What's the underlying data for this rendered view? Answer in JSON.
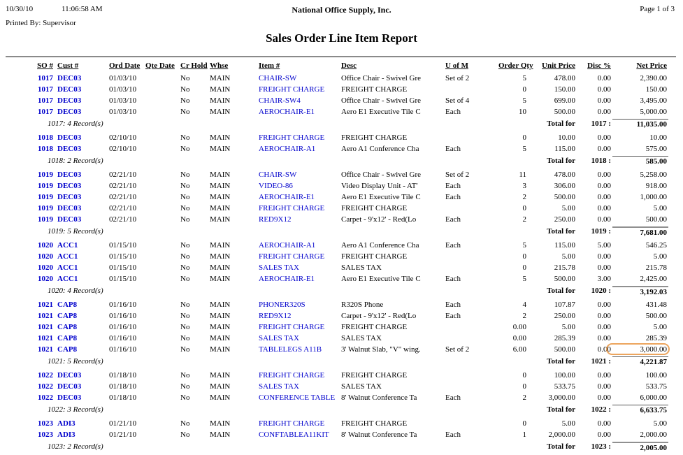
{
  "colors": {
    "link_blue": "#0000cc",
    "rule_gray": "#8a8a8a",
    "highlight_orange": "#eca55e"
  },
  "page_header": {
    "date": "10/30/10",
    "time": "11:06:58 AM",
    "printed_by": "Printed By: Supervisor",
    "company": "National Office Supply, Inc.",
    "report_title": "Sales Order Line Item Report",
    "page_info": "Page 1 of 3"
  },
  "table": {
    "columns": [
      "SO #",
      "Cust #",
      "Ord Date",
      "Qte Date",
      "Cr Hold",
      "Whse",
      "Item #",
      "Desc",
      "U of M",
      "Order Qty",
      "Unit Price",
      "Disc %",
      "Net Price"
    ],
    "groups": [
      {
        "summary_label": "1017: 4 Record(s)",
        "total_label": "Total for",
        "total_key": "1017 :",
        "total_value": "11,035.00",
        "total_rule": "thin",
        "rows": [
          {
            "so": "1017",
            "cust": "DEC03",
            "ord": "01/03/10",
            "qte": "",
            "cr": "No",
            "whse": "MAIN",
            "item": "CHAIR-SW",
            "desc": "Office Chair - Swivel Gre",
            "uofm": "Set of 2",
            "qty": "5",
            "unit": "478.00",
            "disc": "0.00",
            "net": "2,390.00"
          },
          {
            "so": "1017",
            "cust": "DEC03",
            "ord": "01/03/10",
            "qte": "",
            "cr": "No",
            "whse": "MAIN",
            "item": "FREIGHT CHARGE",
            "desc": "FREIGHT CHARGE",
            "uofm": "",
            "qty": "0",
            "unit": "150.00",
            "disc": "0.00",
            "net": "150.00"
          },
          {
            "so": "1017",
            "cust": "DEC03",
            "ord": "01/03/10",
            "qte": "",
            "cr": "No",
            "whse": "MAIN",
            "item": "CHAIR-SW4",
            "desc": "Office Chair - Swivel Gre",
            "uofm": "Set of 4",
            "qty": "5",
            "unit": "699.00",
            "disc": "0.00",
            "net": "3,495.00"
          },
          {
            "so": "1017",
            "cust": "DEC03",
            "ord": "01/03/10",
            "qte": "",
            "cr": "No",
            "whse": "MAIN",
            "item": "AEROCHAIR-E1",
            "desc": "Aero E1 Executive Tile C",
            "uofm": "Each",
            "qty": "10",
            "unit": "500.00",
            "disc": "0.00",
            "net": "5,000.00"
          }
        ]
      },
      {
        "summary_label": "1018: 2 Record(s)",
        "total_label": "Total for",
        "total_key": "1018 :",
        "total_value": "585.00",
        "total_rule": "thin",
        "rows": [
          {
            "so": "1018",
            "cust": "DEC03",
            "ord": "02/10/10",
            "qte": "",
            "cr": "No",
            "whse": "MAIN",
            "item": "FREIGHT CHARGE",
            "desc": "FREIGHT CHARGE",
            "uofm": "",
            "qty": "0",
            "unit": "10.00",
            "disc": "0.00",
            "net": "10.00"
          },
          {
            "so": "1018",
            "cust": "DEC03",
            "ord": "02/10/10",
            "qte": "",
            "cr": "No",
            "whse": "MAIN",
            "item": "AEROCHAIR-A1",
            "desc": "Aero A1 Conference Cha",
            "uofm": "Each",
            "qty": "5",
            "unit": "115.00",
            "disc": "0.00",
            "net": "575.00"
          }
        ]
      },
      {
        "summary_label": "1019: 5 Record(s)",
        "total_label": "Total for",
        "total_key": "1019 :",
        "total_value": "7,681.00",
        "total_rule": "thick",
        "rows": [
          {
            "so": "1019",
            "cust": "DEC03",
            "ord": "02/21/10",
            "qte": "",
            "cr": "No",
            "whse": "MAIN",
            "item": "CHAIR-SW",
            "desc": "Office Chair - Swivel Gre",
            "uofm": "Set of 2",
            "qty": "11",
            "unit": "478.00",
            "disc": "0.00",
            "net": "5,258.00"
          },
          {
            "so": "1019",
            "cust": "DEC03",
            "ord": "02/21/10",
            "qte": "",
            "cr": "No",
            "whse": "MAIN",
            "item": "VIDEO-86",
            "desc": "Video Display Unit - AT'",
            "uofm": "Each",
            "qty": "3",
            "unit": "306.00",
            "disc": "0.00",
            "net": "918.00"
          },
          {
            "so": "1019",
            "cust": "DEC03",
            "ord": "02/21/10",
            "qte": "",
            "cr": "No",
            "whse": "MAIN",
            "item": "AEROCHAIR-E1",
            "desc": "Aero E1 Executive Tile C",
            "uofm": "Each",
            "qty": "2",
            "unit": "500.00",
            "disc": "0.00",
            "net": "1,000.00"
          },
          {
            "so": "1019",
            "cust": "DEC03",
            "ord": "02/21/10",
            "qte": "",
            "cr": "No",
            "whse": "MAIN",
            "item": "FREIGHT CHARGE",
            "desc": "FREIGHT CHARGE",
            "uofm": "",
            "qty": "0",
            "unit": "5.00",
            "disc": "0.00",
            "net": "5.00"
          },
          {
            "so": "1019",
            "cust": "DEC03",
            "ord": "02/21/10",
            "qte": "",
            "cr": "No",
            "whse": "MAIN",
            "item": "RED9X12",
            "desc": "Carpet - 9'x12' - Red(Lo",
            "uofm": "Each",
            "qty": "2",
            "unit": "250.00",
            "disc": "0.00",
            "net": "500.00"
          }
        ]
      },
      {
        "summary_label": "1020: 4 Record(s)",
        "total_label": "Total for",
        "total_key": "1020 :",
        "total_value": "3,192.03",
        "total_rule": "thick",
        "rows": [
          {
            "so": "1020",
            "cust": "ACC1",
            "ord": "01/15/10",
            "qte": "",
            "cr": "No",
            "whse": "MAIN",
            "item": "AEROCHAIR-A1",
            "desc": "Aero A1 Conference Cha",
            "uofm": "Each",
            "qty": "5",
            "unit": "115.00",
            "disc": "5.00",
            "net": "546.25"
          },
          {
            "so": "1020",
            "cust": "ACC1",
            "ord": "01/15/10",
            "qte": "",
            "cr": "No",
            "whse": "MAIN",
            "item": "FREIGHT CHARGE",
            "desc": "FREIGHT CHARGE",
            "uofm": "",
            "qty": "0",
            "unit": "5.00",
            "disc": "0.00",
            "net": "5.00"
          },
          {
            "so": "1020",
            "cust": "ACC1",
            "ord": "01/15/10",
            "qte": "",
            "cr": "No",
            "whse": "MAIN",
            "item": "SALES TAX",
            "desc": "SALES TAX",
            "uofm": "",
            "qty": "0",
            "unit": "215.78",
            "disc": "0.00",
            "net": "215.78"
          },
          {
            "so": "1020",
            "cust": "ACC1",
            "ord": "01/15/10",
            "qte": "",
            "cr": "No",
            "whse": "MAIN",
            "item": "AEROCHAIR-E1",
            "desc": "Aero E1 Executive Tile C",
            "uofm": "Each",
            "qty": "5",
            "unit": "500.00",
            "disc": "3.00",
            "net": "2,425.00"
          }
        ]
      },
      {
        "summary_label": "1021: 5 Record(s)",
        "total_label": "Total for",
        "total_key": "1021 :",
        "total_value": "4,221.87",
        "total_rule": "thin",
        "rows": [
          {
            "so": "1021",
            "cust": "CAP8",
            "ord": "01/16/10",
            "qte": "",
            "cr": "No",
            "whse": "MAIN",
            "item": "PHONER320S",
            "desc": "R320S Phone",
            "uofm": "Each",
            "qty": "4",
            "unit": "107.87",
            "disc": "0.00",
            "net": "431.48"
          },
          {
            "so": "1021",
            "cust": "CAP8",
            "ord": "01/16/10",
            "qte": "",
            "cr": "No",
            "whse": "MAIN",
            "item": "RED9X12",
            "desc": "Carpet - 9'x12' - Red(Lo",
            "uofm": "Each",
            "qty": "2",
            "unit": "250.00",
            "disc": "0.00",
            "net": "500.00"
          },
          {
            "so": "1021",
            "cust": "CAP8",
            "ord": "01/16/10",
            "qte": "",
            "cr": "No",
            "whse": "MAIN",
            "item": "FREIGHT CHARGE",
            "desc": "FREIGHT CHARGE",
            "uofm": "",
            "qty": "0.00",
            "unit": "5.00",
            "disc": "0.00",
            "net": "5.00"
          },
          {
            "so": "1021",
            "cust": "CAP8",
            "ord": "01/16/10",
            "qte": "",
            "cr": "No",
            "whse": "MAIN",
            "item": "SALES TAX",
            "desc": "SALES TAX",
            "uofm": "",
            "qty": "0.00",
            "unit": "285.39",
            "disc": "0.00",
            "net": "285.39"
          },
          {
            "so": "1021",
            "cust": "CAP8",
            "ord": "01/16/10",
            "qte": "",
            "cr": "No",
            "whse": "MAIN",
            "item": "TABLELEGS A11B",
            "desc": "3' Walnut Slab, \"V\" wing.",
            "uofm": "Set of 2",
            "qty": "6.00",
            "unit": "500.00",
            "disc": "0.00",
            "net": "3,000.00",
            "highlight_net": true
          }
        ]
      },
      {
        "summary_label": "1022: 3 Record(s)",
        "total_label": "Total for",
        "total_key": "1022 :",
        "total_value": "6,633.75",
        "total_rule": "thin",
        "rows": [
          {
            "so": "1022",
            "cust": "DEC03",
            "ord": "01/18/10",
            "qte": "",
            "cr": "No",
            "whse": "MAIN",
            "item": "FREIGHT CHARGE",
            "desc": "FREIGHT CHARGE",
            "uofm": "",
            "qty": "0",
            "unit": "100.00",
            "disc": "0.00",
            "net": "100.00"
          },
          {
            "so": "1022",
            "cust": "DEC03",
            "ord": "01/18/10",
            "qte": "",
            "cr": "No",
            "whse": "MAIN",
            "item": "SALES TAX",
            "desc": "SALES TAX",
            "uofm": "",
            "qty": "0",
            "unit": "533.75",
            "disc": "0.00",
            "net": "533.75"
          },
          {
            "so": "1022",
            "cust": "DEC03",
            "ord": "01/18/10",
            "qte": "",
            "cr": "No",
            "whse": "MAIN",
            "item": "CONFERENCE TABLE",
            "desc": "8' Walnut Conference Ta",
            "uofm": "Each",
            "qty": "2",
            "unit": "3,000.00",
            "disc": "0.00",
            "net": "6,000.00"
          }
        ]
      },
      {
        "summary_label": "1023: 2 Record(s)",
        "total_label": "Total for",
        "total_key": "1023 :",
        "total_value": "2,005.00",
        "total_rule": "thick",
        "rows": [
          {
            "so": "1023",
            "cust": "ADI3",
            "ord": "01/21/10",
            "qte": "",
            "cr": "No",
            "whse": "MAIN",
            "item": "FREIGHT CHARGE",
            "desc": "FREIGHT CHARGE",
            "uofm": "",
            "qty": "0",
            "unit": "5.00",
            "disc": "0.00",
            "net": "5.00"
          },
          {
            "so": "1023",
            "cust": "ADI3",
            "ord": "01/21/10",
            "qte": "",
            "cr": "No",
            "whse": "MAIN",
            "item": "CONFTABLEA11KIT",
            "desc": "8' Walnut Conference Ta",
            "uofm": "Each",
            "qty": "1",
            "unit": "2,000.00",
            "disc": "0.00",
            "net": "2,000.00"
          }
        ]
      }
    ]
  }
}
